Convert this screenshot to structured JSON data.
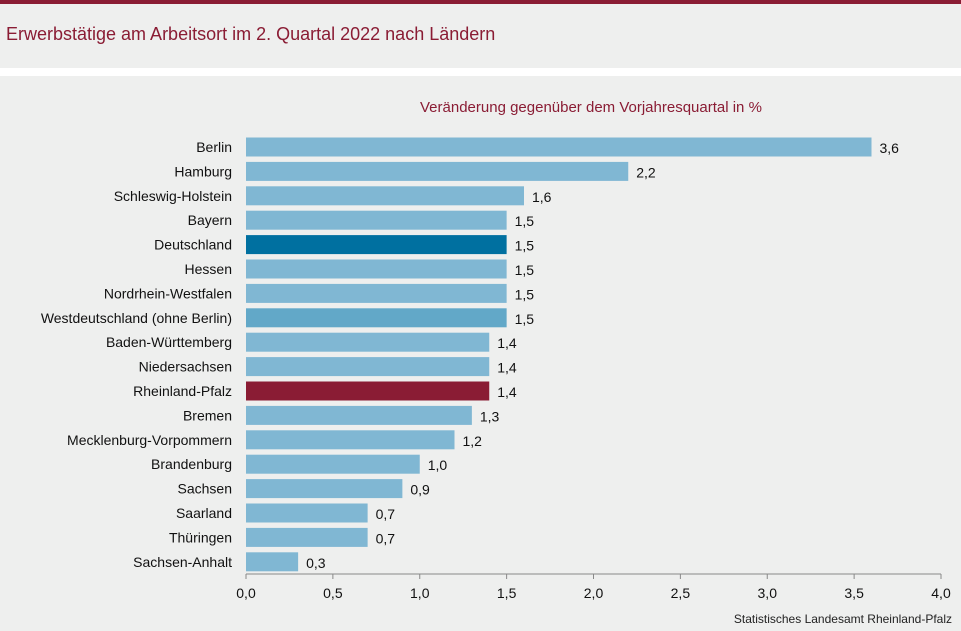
{
  "header": {
    "title": "Erwerbstätige am Arbeitsort im 2. Quartal 2022 nach Ländern"
  },
  "source": "Statistisches Landesamt Rheinland-Pfalz",
  "colors": {
    "brand": "#8a1c34",
    "default_bar": "#80b7d3",
    "deutschland_bar": "#0070a0",
    "westdeutschland_bar": "#62a8c8",
    "rheinland_pfalz_bar": "#8a1c34",
    "background": "#eeefee"
  },
  "chart_data": {
    "type": "bar",
    "orientation": "horizontal",
    "title": "Veränderung gegenüber dem Vorjahresquartal in %",
    "categories": [
      "Berlin",
      "Hamburg",
      "Schleswig-Holstein",
      "Bayern",
      "Deutschland",
      "Hessen",
      "Nordrhein-Westfalen",
      "Westdeutschland (ohne Berlin)",
      "Baden-Württemberg",
      "Niedersachsen",
      "Rheinland-Pfalz",
      "Bremen",
      "Mecklenburg-Vorpommern",
      "Brandenburg",
      "Sachsen",
      "Saarland",
      "Thüringen",
      "Sachsen-Anhalt"
    ],
    "values": [
      3.6,
      2.2,
      1.6,
      1.5,
      1.5,
      1.5,
      1.5,
      1.5,
      1.4,
      1.4,
      1.4,
      1.3,
      1.2,
      1.0,
      0.9,
      0.7,
      0.7,
      0.3
    ],
    "value_labels": [
      "3,6",
      "2,2",
      "1,6",
      "1,5",
      "1,5",
      "1,5",
      "1,5",
      "1,5",
      "1,4",
      "1,4",
      "1,4",
      "1,3",
      "1,2",
      "1,0",
      "0,9",
      "0,7",
      "0,7",
      "0,3"
    ],
    "highlight": {
      "Deutschland": "deutschland_bar",
      "Westdeutschland (ohne Berlin)": "westdeutschland_bar",
      "Rheinland-Pfalz": "rheinland_pfalz_bar"
    },
    "xlim": [
      0,
      4.0
    ],
    "xticks": [
      0,
      0.5,
      1.0,
      1.5,
      2.0,
      2.5,
      3.0,
      3.5,
      4.0
    ],
    "xtick_labels": [
      "0,0",
      "0,5",
      "1,0",
      "1,5",
      "2,0",
      "2,5",
      "3,0",
      "3,5",
      "4,0"
    ],
    "grid": false,
    "legend": "none"
  }
}
